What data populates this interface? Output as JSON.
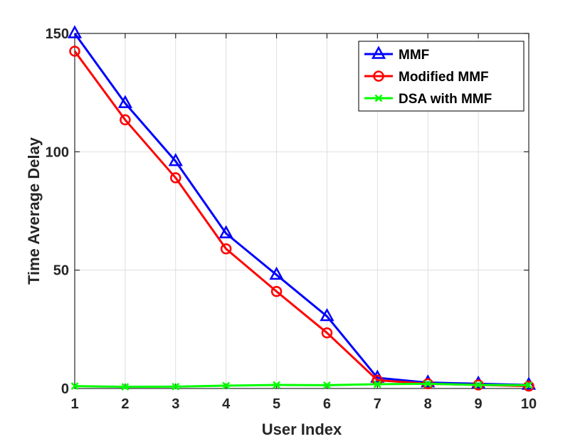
{
  "chart_data": {
    "type": "line",
    "title": "",
    "xlabel": "User Index",
    "ylabel": "Time Average Delay",
    "x": [
      1,
      2,
      3,
      4,
      5,
      6,
      7,
      8,
      9,
      10
    ],
    "xlim": [
      1,
      10
    ],
    "ylim": [
      0,
      150
    ],
    "xticks": [
      1,
      2,
      3,
      4,
      5,
      6,
      7,
      8,
      9,
      10
    ],
    "yticks": [
      0,
      50,
      100,
      150
    ],
    "grid": true,
    "legend_position": "top-right",
    "series": [
      {
        "name": "MMF",
        "color": "#0000ff",
        "marker": "triangle",
        "values": [
          150,
          120.5,
          96,
          65.5,
          48,
          30.5,
          4.5,
          2.5,
          2,
          1.5
        ]
      },
      {
        "name": "Modified MMF",
        "color": "#ff0000",
        "marker": "circle",
        "values": [
          142.5,
          113.5,
          89,
          59,
          41,
          23.5,
          3.5,
          2,
          1.5,
          1
        ]
      },
      {
        "name": "DSA with MMF",
        "color": "#00ff00",
        "marker": "x",
        "values": [
          1,
          0.7,
          0.8,
          1.2,
          1.5,
          1.4,
          1.8,
          2,
          1.5,
          1.4
        ]
      }
    ]
  }
}
